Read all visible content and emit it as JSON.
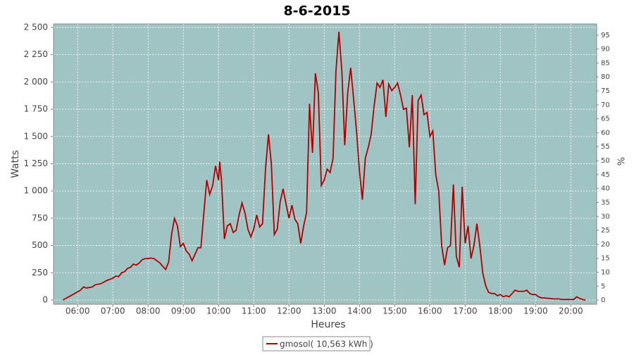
{
  "chart_data": {
    "type": "line",
    "title": "8-6-2015",
    "x_label": "Heures",
    "y_label": "Watts",
    "y2_label": "%",
    "x": [
      "05:35",
      "05:45",
      "05:55",
      "06:05",
      "06:10",
      "06:15",
      "06:25",
      "06:30",
      "06:40",
      "06:50",
      "07:00",
      "07:05",
      "07:10",
      "07:15",
      "07:20",
      "07:25",
      "07:30",
      "07:35",
      "07:40",
      "07:45",
      "07:50",
      "07:55",
      "08:00",
      "08:05",
      "08:10",
      "08:15",
      "08:20",
      "08:25",
      "08:30",
      "08:35",
      "08:40",
      "08:45",
      "08:50",
      "08:55",
      "09:00",
      "09:05",
      "09:10",
      "09:15",
      "09:20",
      "09:25",
      "09:30",
      "09:35",
      "09:40",
      "09:45",
      "09:50",
      "09:55",
      "10:00",
      "10:02",
      "10:05",
      "10:10",
      "10:15",
      "10:20",
      "10:25",
      "10:30",
      "10:35",
      "10:40",
      "10:45",
      "10:50",
      "10:55",
      "11:00",
      "11:05",
      "11:10",
      "11:15",
      "11:20",
      "11:25",
      "11:30",
      "11:35",
      "11:40",
      "11:45",
      "11:50",
      "11:55",
      "12:00",
      "12:05",
      "12:10",
      "12:15",
      "12:20",
      "12:25",
      "12:30",
      "12:35",
      "12:40",
      "12:45",
      "12:50",
      "12:55",
      "13:00",
      "13:05",
      "13:10",
      "13:15",
      "13:20",
      "13:25",
      "13:30",
      "13:35",
      "13:40",
      "13:45",
      "13:50",
      "13:55",
      "14:00",
      "14:05",
      "14:10",
      "14:15",
      "14:20",
      "14:25",
      "14:30",
      "14:35",
      "14:40",
      "14:45",
      "14:50",
      "14:55",
      "15:00",
      "15:05",
      "15:10",
      "15:15",
      "15:20",
      "15:25",
      "15:30",
      "15:35",
      "15:40",
      "15:45",
      "15:50",
      "15:55",
      "16:00",
      "16:05",
      "16:10",
      "16:15",
      "16:20",
      "16:25",
      "16:30",
      "16:35",
      "16:40",
      "16:45",
      "16:50",
      "16:55",
      "17:00",
      "17:05",
      "17:10",
      "17:15",
      "17:20",
      "17:25",
      "17:30",
      "17:35",
      "17:40",
      "17:45",
      "17:50",
      "17:55",
      "18:00",
      "18:05",
      "18:10",
      "18:15",
      "18:20",
      "18:25",
      "18:30",
      "18:35",
      "18:40",
      "18:45",
      "18:50",
      "18:55",
      "19:00",
      "19:05",
      "19:10",
      "19:15",
      "19:20",
      "19:25",
      "19:30",
      "19:35",
      "19:40",
      "19:45",
      "19:50",
      "19:55",
      "20:00",
      "20:05",
      "20:10",
      "20:15",
      "20:20",
      "20:25"
    ],
    "series": [
      {
        "name": "gmosol( 10,563 kWh )",
        "color": "#b00000",
        "values": [
          0,
          30,
          60,
          90,
          120,
          110,
          120,
          140,
          150,
          180,
          200,
          220,
          215,
          250,
          260,
          290,
          300,
          330,
          320,
          340,
          370,
          380,
          380,
          385,
          380,
          360,
          340,
          310,
          280,
          350,
          600,
          750,
          680,
          490,
          520,
          450,
          420,
          360,
          420,
          480,
          480,
          800,
          1100,
          970,
          1050,
          1230,
          1100,
          1270,
          1100,
          560,
          680,
          700,
          620,
          640,
          780,
          890,
          800,
          650,
          580,
          650,
          780,
          670,
          700,
          1200,
          1520,
          1250,
          600,
          650,
          900,
          1020,
          880,
          750,
          870,
          740,
          700,
          520,
          680,
          800,
          1800,
          1350,
          2080,
          1900,
          1050,
          1100,
          1200,
          1170,
          1300,
          2100,
          2460,
          2100,
          1420,
          1900,
          2130,
          1850,
          1550,
          1180,
          920,
          1300,
          1400,
          1520,
          1780,
          1990,
          1950,
          2020,
          1680,
          1980,
          1920,
          1950,
          1990,
          1880,
          1750,
          1760,
          1400,
          1880,
          880,
          1830,
          1880,
          1700,
          1720,
          1500,
          1550,
          1150,
          1000,
          500,
          320,
          480,
          500,
          1060,
          400,
          300,
          1040,
          520,
          680,
          380,
          500,
          700,
          500,
          250,
          130,
          70,
          60,
          60,
          40,
          50,
          30,
          40,
          30,
          60,
          90,
          80,
          80,
          80,
          90,
          60,
          50,
          50,
          30,
          20,
          20,
          15,
          15,
          10,
          10,
          10,
          5,
          5,
          5,
          5,
          5,
          30,
          15,
          5,
          0
        ]
      }
    ],
    "xlim": [
      "05:19",
      "20:44"
    ],
    "xticks": [
      "06:00",
      "07:00",
      "08:00",
      "09:00",
      "10:00",
      "11:00",
      "12:00",
      "13:00",
      "14:00",
      "15:00",
      "16:00",
      "17:00",
      "18:00",
      "19:00",
      "20:00"
    ],
    "ylim": [
      -39,
      2532
    ],
    "yticks": [
      0,
      250,
      500,
      750,
      {
        "value": 1000,
        "label": "1 000"
      },
      {
        "value": 1250,
        "label": "1 250"
      },
      {
        "value": 1500,
        "label": "1 500"
      },
      {
        "value": 1750,
        "label": "1 750"
      },
      {
        "value": 2000,
        "label": "2 000"
      },
      {
        "value": 2250,
        "label": "2 250"
      },
      {
        "value": 2500,
        "label": "2 500"
      }
    ],
    "y2lim": [
      -1.5,
      99
    ],
    "y2ticks": [
      0,
      5,
      10,
      15,
      20,
      25,
      30,
      35,
      40,
      45,
      50,
      55,
      60,
      65,
      70,
      75,
      80,
      85,
      90,
      95
    ],
    "grid": true,
    "legend": "bottom",
    "plot_background": "#a0c4c4"
  }
}
